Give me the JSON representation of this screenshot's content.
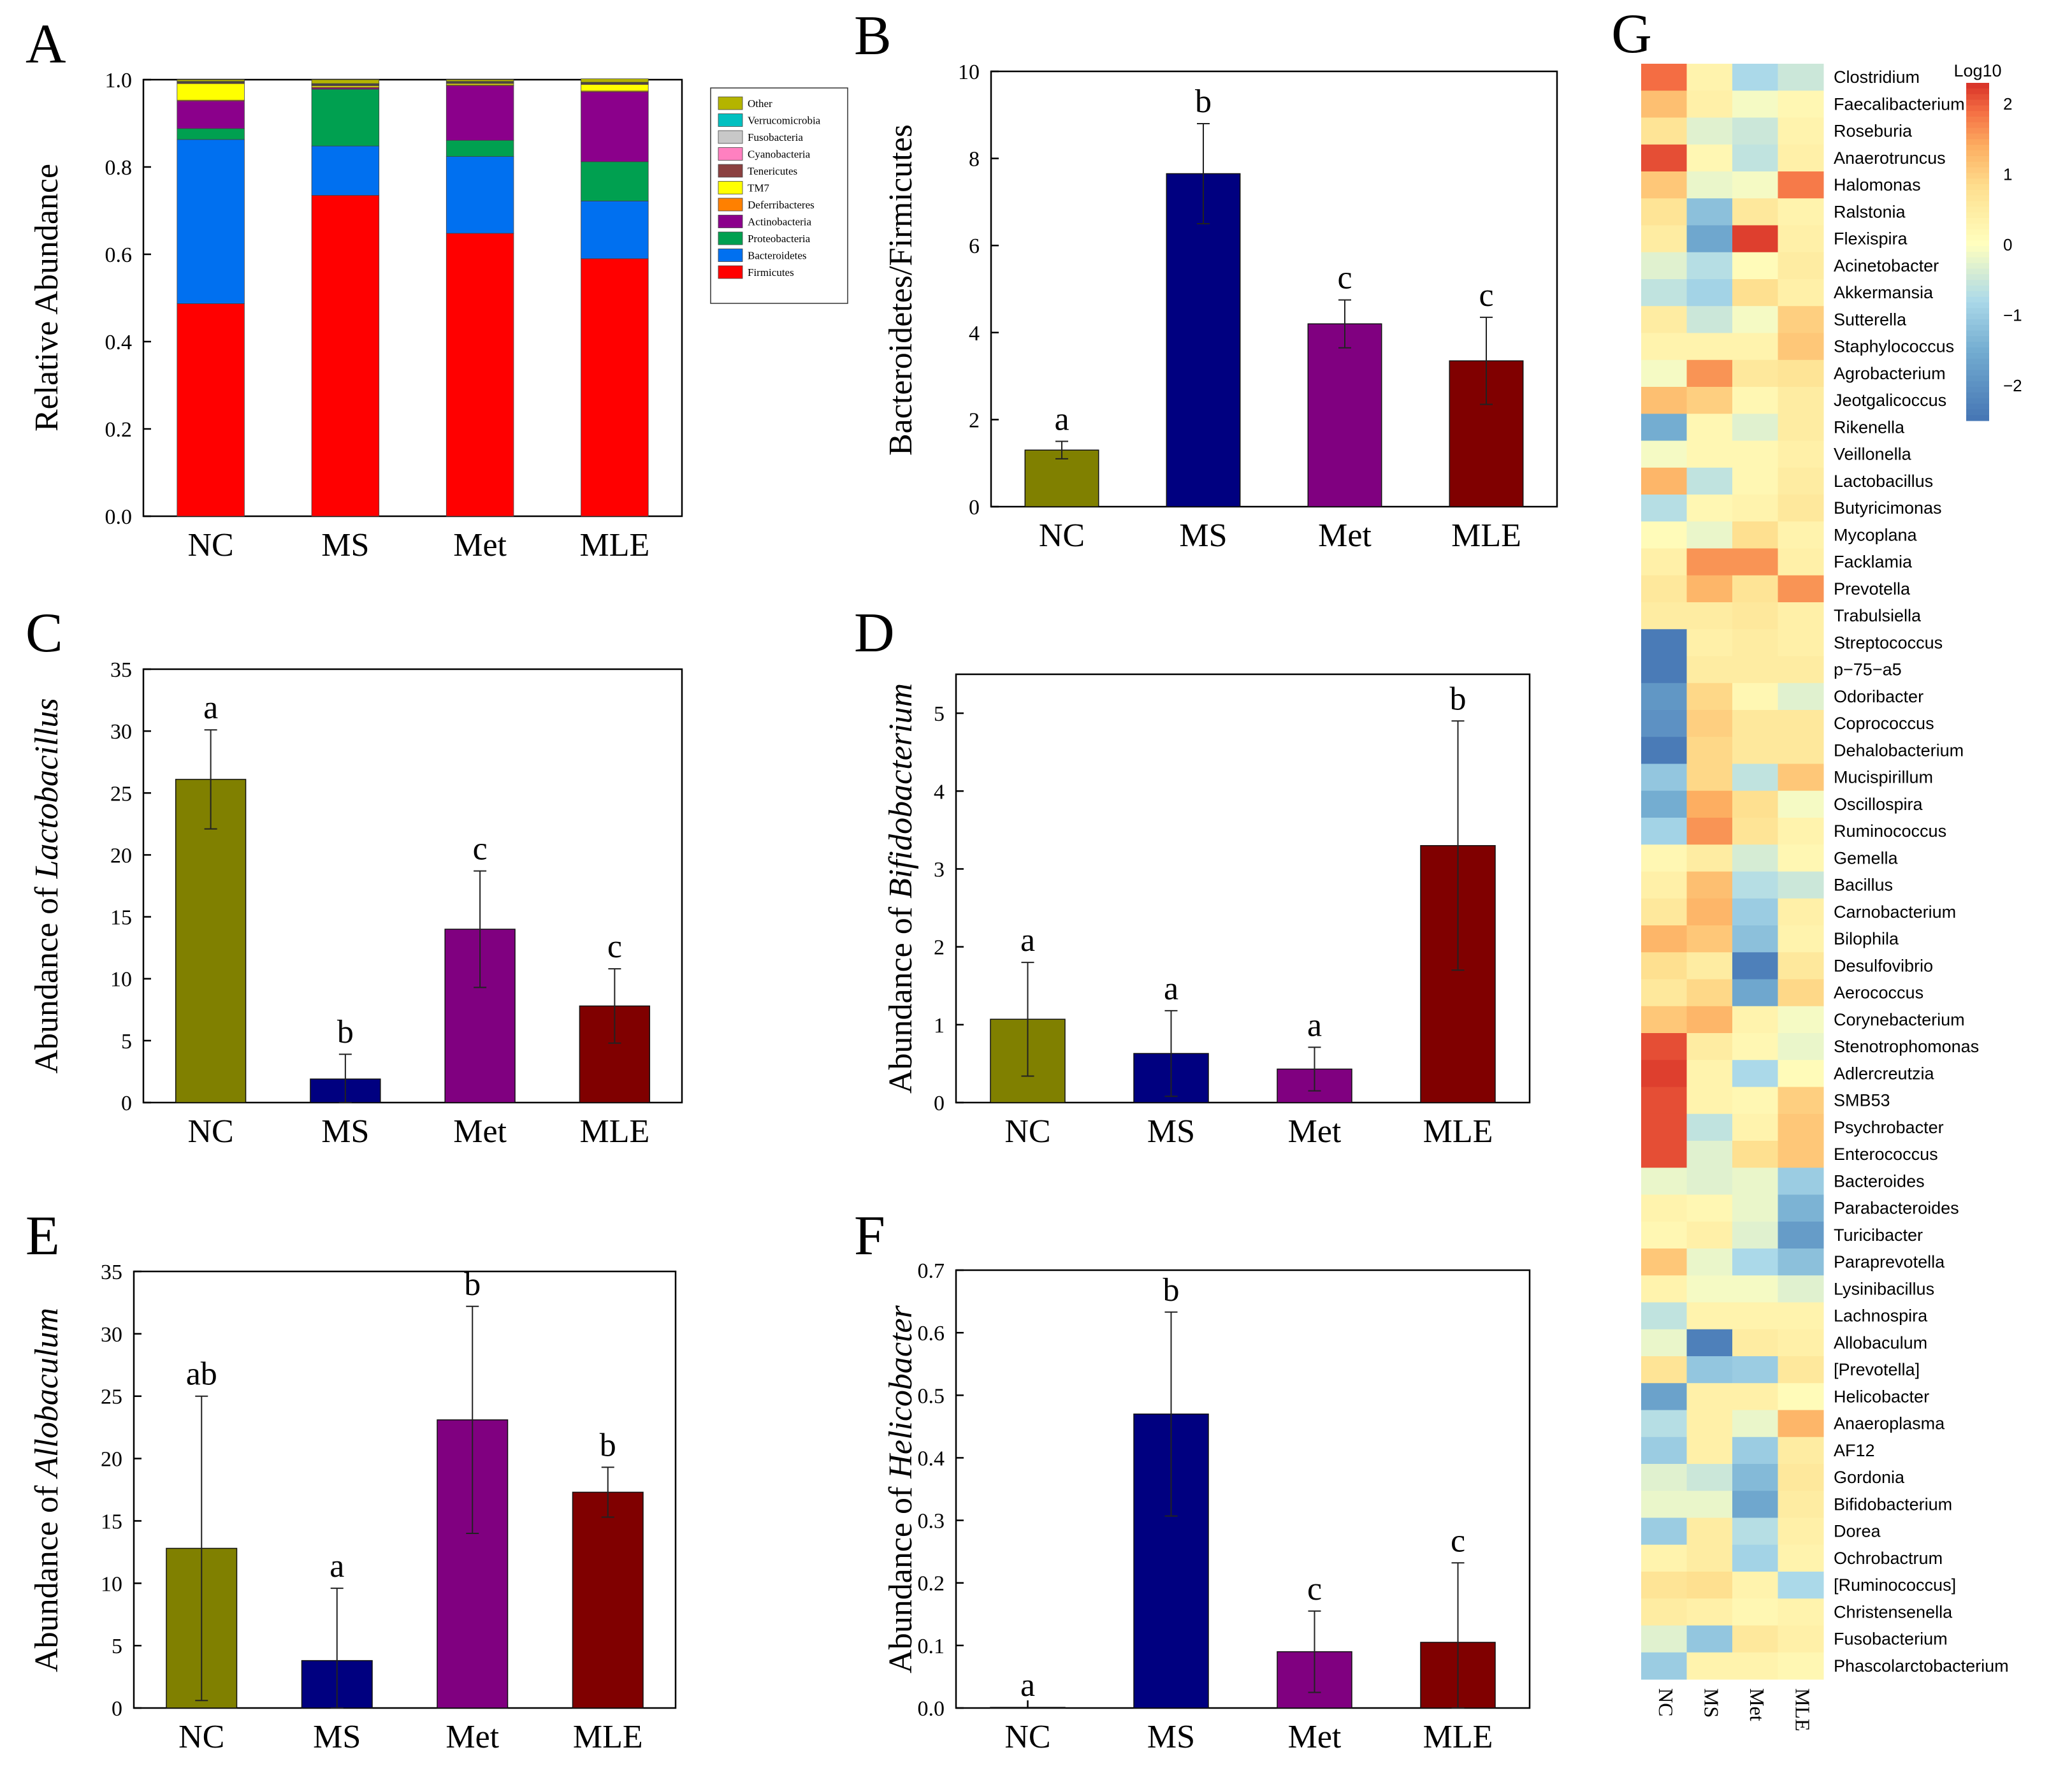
{
  "chart_data": [
    {
      "id": "A",
      "type": "bar",
      "stacked": true,
      "panel_label": "A",
      "ylabel": "Relative Abundance",
      "xlabel": "",
      "ylim": [
        0,
        1.0
      ],
      "yticks": [
        "0.0",
        "0.2",
        "0.4",
        "0.6",
        "0.8",
        "1.0"
      ],
      "categories": [
        "NC",
        "MS",
        "Met",
        "MLE"
      ],
      "series": [
        {
          "name": "Firmicutes",
          "color": "#ff0000",
          "values": [
            0.487,
            0.735,
            0.648,
            0.59
          ]
        },
        {
          "name": "Bacteroidetes",
          "color": "#0070f0",
          "values": [
            0.376,
            0.113,
            0.176,
            0.132
          ]
        },
        {
          "name": "Proteobacteria",
          "color": "#00a050",
          "values": [
            0.025,
            0.13,
            0.037,
            0.09
          ]
        },
        {
          "name": "Actinobacteria",
          "color": "#8b008b",
          "values": [
            0.063,
            0.003,
            0.125,
            0.16
          ]
        },
        {
          "name": "Deferribacteres",
          "color": "#ff8000",
          "values": [
            0.002,
            0.002,
            0.002,
            0.002
          ]
        },
        {
          "name": "TM7",
          "color": "#ffff00",
          "values": [
            0.038,
            0.003,
            0.003,
            0.015
          ]
        },
        {
          "name": "Tenericutes",
          "color": "#8b4040",
          "values": [
            0.002,
            0.002,
            0.002,
            0.002
          ]
        },
        {
          "name": "Cyanobacteria",
          "color": "#ff80c0",
          "values": [
            0.001,
            0.001,
            0.001,
            0.001
          ]
        },
        {
          "name": "Fusobacteria",
          "color": "#c8c8c8",
          "values": [
            0.001,
            0.001,
            0.001,
            0.001
          ]
        },
        {
          "name": "Verrucomicrobia",
          "color": "#00c0c0",
          "values": [
            0.001,
            0.001,
            0.001,
            0.001
          ]
        },
        {
          "name": "Other",
          "color": "#b4b400",
          "values": [
            0.004,
            0.009,
            0.004,
            0.008
          ]
        }
      ],
      "legend_order": [
        "Other",
        "Verrucomicrobia",
        "Fusobacteria",
        "Cyanobacteria",
        "Tenericutes",
        "TM7",
        "Deferribacteres",
        "Actinobacteria",
        "Proteobacteria",
        "Bacteroidetes",
        "Firmicutes"
      ]
    },
    {
      "id": "B",
      "type": "bar",
      "panel_label": "B",
      "ylabel": "Bacteroidetes/Firmicutes",
      "ylabel_italic": "",
      "ylabel_suffix": "",
      "ylim": [
        0,
        10
      ],
      "yticks": [
        "0",
        "2",
        "4",
        "6",
        "8",
        "10"
      ],
      "categories": [
        "NC",
        "MS",
        "Met",
        "MLE"
      ],
      "values": [
        1.3,
        7.65,
        4.2,
        3.35
      ],
      "errors": [
        0.2,
        1.15,
        0.55,
        1.0
      ],
      "letters": [
        "a",
        "b",
        "c",
        "c"
      ],
      "colors": [
        "#808000",
        "#000080",
        "#800080",
        "#800000"
      ]
    },
    {
      "id": "C",
      "type": "bar",
      "panel_label": "C",
      "ylabel": "Abundance of ",
      "ylabel_italic": "Lactobacillus",
      "ylabel_suffix": "",
      "ylim": [
        0,
        35
      ],
      "yticks": [
        "0",
        "5",
        "10",
        "15",
        "20",
        "25",
        "30",
        "35"
      ],
      "categories": [
        "NC",
        "MS",
        "Met",
        "MLE"
      ],
      "values": [
        26.1,
        1.9,
        14.0,
        7.8
      ],
      "errors": [
        4.0,
        2.0,
        4.7,
        3.0
      ],
      "letters": [
        "a",
        "b",
        "c",
        "c"
      ],
      "colors": [
        "#808000",
        "#000080",
        "#800080",
        "#800000"
      ]
    },
    {
      "id": "D",
      "type": "bar",
      "panel_label": "D",
      "ylabel": "Abundance of ",
      "ylabel_italic": "Bifidobacterium",
      "ylabel_suffix": "",
      "ylim": [
        0,
        5.5
      ],
      "yticks": [
        "0",
        "1",
        "2",
        "3",
        "4",
        "5"
      ],
      "categories": [
        "NC",
        "MS",
        "Met",
        "MLE"
      ],
      "values": [
        1.07,
        0.63,
        0.43,
        3.3
      ],
      "errors": [
        0.73,
        0.55,
        0.28,
        1.6
      ],
      "letters": [
        "a",
        "a",
        "a",
        "b"
      ],
      "colors": [
        "#808000",
        "#000080",
        "#800080",
        "#800000"
      ]
    },
    {
      "id": "E",
      "type": "bar",
      "panel_label": "E",
      "ylabel": "Abundance of ",
      "ylabel_italic": "Allobaculum",
      "ylabel_suffix": "",
      "ylim": [
        0,
        35
      ],
      "yticks": [
        "0",
        "5",
        "10",
        "15",
        "20",
        "25",
        "30",
        "35"
      ],
      "categories": [
        "NC",
        "MS",
        "Met",
        "MLE"
      ],
      "values": [
        12.8,
        3.8,
        23.1,
        17.3
      ],
      "errors": [
        12.2,
        5.8,
        9.1,
        2.0
      ],
      "letters": [
        "ab",
        "a",
        "b",
        "b"
      ],
      "colors": [
        "#808000",
        "#000080",
        "#800080",
        "#800000"
      ]
    },
    {
      "id": "F",
      "type": "bar",
      "panel_label": "F",
      "ylabel": "Abundance of ",
      "ylabel_italic": "Helicobacter",
      "ylabel_suffix": "",
      "ylim": [
        0,
        0.7
      ],
      "yticks": [
        "0.0",
        "0.1",
        "0.2",
        "0.3",
        "0.4",
        "0.5",
        "0.6",
        "0.7"
      ],
      "categories": [
        "NC",
        "MS",
        "Met",
        "MLE"
      ],
      "values": [
        0.001,
        0.47,
        0.09,
        0.105
      ],
      "errors": [
        0.0,
        0.163,
        0.065,
        0.127
      ],
      "letters": [
        "a",
        "b",
        "c",
        "c"
      ],
      "colors": [
        "#808000",
        "#000080",
        "#800080",
        "#800000"
      ]
    },
    {
      "id": "G",
      "type": "heatmap",
      "panel_label": "G",
      "columns": [
        "NC",
        "MS",
        "Met",
        "MLE"
      ],
      "colorbar": {
        "title": "Log10",
        "range": [
          -2.5,
          2.3
        ],
        "ticks": [
          "2",
          "1",
          "0",
          "−1",
          "−2"
        ],
        "tick_values": [
          2,
          1,
          0,
          -1,
          -2
        ]
      },
      "rows": [
        "Clostridium",
        "Faecalibacterium",
        "Roseburia",
        "Anaerotruncus",
        "Halomonas",
        "Ralstonia",
        "Flexispira",
        "Acinetobacter",
        "Akkermansia",
        "Sutterella",
        "Staphylococcus",
        "Agrobacterium",
        "Jeotgalicoccus",
        "Rikenella",
        "Veillonella",
        "Lactobacillus",
        "Butyricimonas",
        "Mycoplana",
        "Facklamia",
        "Prevotella",
        "Trabulsiella",
        "Streptococcus",
        "p−75−a5",
        "Odoribacter",
        "Coprococcus",
        "Dehalobacterium",
        "Mucispirillum",
        "Oscillospira",
        "Ruminococcus",
        "Gemella",
        "Bacillus",
        "Carnobacterium",
        "Bilophila",
        "Desulfovibrio",
        "Aerococcus",
        "Corynebacterium",
        "Stenotrophomonas",
        "Adlercreutzia",
        "SMB53",
        "Psychrobacter",
        "Enterococcus",
        "Bacteroides",
        "Parabacteroides",
        "Turicibacter",
        "Paraprevotella",
        "Lysinibacillus",
        "Lachnospira",
        "Allobaculum",
        "[Prevotella]",
        "Helicobacter",
        "Anaeroplasma",
        "AF12",
        "Gordonia",
        "Bifidobacterium",
        "Dorea",
        "Ochrobactrum",
        "[Ruminococcus]",
        "Christensenella",
        "Fusobacterium",
        "Phascolarctobacterium"
      ],
      "values": [
        [
          1.9,
          0.3,
          -0.8,
          -0.5
        ],
        [
          1.2,
          0.4,
          -0.1,
          0.2
        ],
        [
          0.7,
          -0.3,
          -0.5,
          0.3
        ],
        [
          2.1,
          0.2,
          -0.6,
          0.4
        ],
        [
          1.1,
          -0.2,
          -0.1,
          1.8
        ],
        [
          0.7,
          -1.2,
          0.6,
          0.3
        ],
        [
          0.5,
          -1.6,
          2.2,
          0.4
        ],
        [
          -0.3,
          -0.7,
          0.1,
          0.5
        ],
        [
          -0.6,
          -0.9,
          0.8,
          0.4
        ],
        [
          0.5,
          -0.5,
          -0.1,
          1.0
        ],
        [
          0.3,
          0.3,
          0.3,
          1.1
        ],
        [
          -0.1,
          1.6,
          0.6,
          0.7
        ],
        [
          1.2,
          1.0,
          0.2,
          0.5
        ],
        [
          -1.5,
          0.2,
          -0.3,
          0.5
        ],
        [
          -0.1,
          0.2,
          0.2,
          0.4
        ],
        [
          1.3,
          -0.6,
          0.2,
          0.5
        ],
        [
          -0.7,
          0.2,
          0.3,
          0.6
        ],
        [
          0.1,
          -0.2,
          0.8,
          0.3
        ],
        [
          0.4,
          1.6,
          1.6,
          0.4
        ],
        [
          0.6,
          1.3,
          0.7,
          1.6
        ],
        [
          0.5,
          0.5,
          0.6,
          0.4
        ],
        [
          -2.4,
          0.4,
          0.5,
          0.4
        ],
        [
          -2.4,
          0.5,
          0.5,
          0.5
        ],
        [
          -1.9,
          0.9,
          0.2,
          -0.3
        ],
        [
          -2.0,
          1.0,
          0.6,
          0.6
        ],
        [
          -2.4,
          0.9,
          0.6,
          0.6
        ],
        [
          -1.1,
          0.9,
          -0.6,
          1.1
        ],
        [
          -1.5,
          1.4,
          0.8,
          -0.1
        ],
        [
          -0.9,
          1.6,
          0.7,
          0.3
        ],
        [
          0.2,
          0.5,
          -0.4,
          0.2
        ],
        [
          0.4,
          1.2,
          -0.7,
          -0.5
        ],
        [
          0.6,
          1.3,
          -1.0,
          0.4
        ],
        [
          1.3,
          1.1,
          -1.2,
          0.3
        ],
        [
          0.8,
          0.5,
          -2.3,
          0.6
        ],
        [
          0.6,
          0.9,
          -1.6,
          0.9
        ],
        [
          1.1,
          1.3,
          0.3,
          -0.1
        ],
        [
          2.1,
          0.5,
          0.2,
          -0.2
        ],
        [
          2.2,
          0.3,
          -0.8,
          0.1
        ],
        [
          2.1,
          0.3,
          0.2,
          1.0
        ],
        [
          2.1,
          -0.6,
          0.3,
          1.1
        ],
        [
          2.1,
          -0.3,
          0.8,
          1.1
        ],
        [
          -0.2,
          -0.3,
          -0.2,
          -1.0
        ],
        [
          0.3,
          0.2,
          -0.2,
          -1.4
        ],
        [
          0.2,
          0.4,
          -0.3,
          -1.8
        ],
        [
          1.1,
          -0.2,
          -0.8,
          -1.2
        ],
        [
          0.3,
          -0.1,
          -0.1,
          -0.3
        ],
        [
          -0.6,
          0.3,
          0.3,
          0.3
        ],
        [
          -0.2,
          -2.3,
          0.5,
          0.4
        ],
        [
          0.7,
          -1.1,
          -1.0,
          0.6
        ],
        [
          -1.7,
          0.4,
          0.4,
          0.1
        ],
        [
          -0.7,
          0.4,
          -0.2,
          1.3
        ],
        [
          -1.0,
          0.4,
          -1.0,
          0.5
        ],
        [
          -0.3,
          -0.5,
          -1.3,
          0.6
        ],
        [
          -0.2,
          -0.2,
          -1.6,
          0.5
        ],
        [
          -1.0,
          0.5,
          -0.7,
          0.4
        ],
        [
          0.3,
          0.5,
          -0.9,
          0.3
        ],
        [
          0.7,
          0.8,
          0.3,
          -0.8
        ],
        [
          0.5,
          0.4,
          0.2,
          0.3
        ],
        [
          -0.3,
          -1.1,
          0.6,
          0.4
        ],
        [
          -1.0,
          0.3,
          0.3,
          0.2
        ]
      ]
    }
  ]
}
